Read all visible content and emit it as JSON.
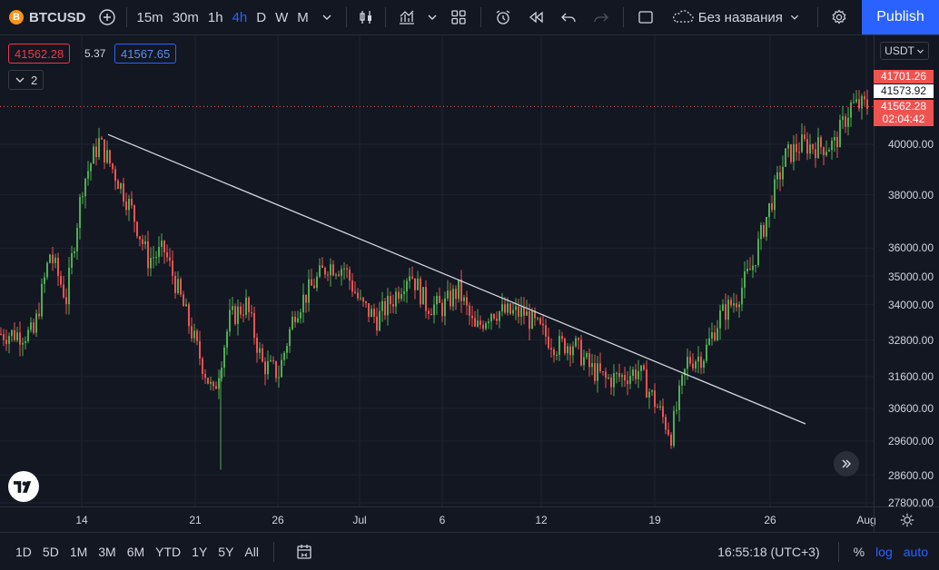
{
  "header": {
    "symbol": "BTCUSD",
    "symbol_icon": "B",
    "intervals": [
      "15m",
      "30m",
      "1h",
      "4h",
      "D",
      "W",
      "M"
    ],
    "active_interval": "4h",
    "layout_name": "Без названия",
    "publish_label": "Publish"
  },
  "quotes": {
    "bid": "41562.28",
    "spread": "5.37",
    "ask": "41567.65",
    "indicators_count": "2"
  },
  "currency": "USDT",
  "price_axis": {
    "labels": [
      "40000.00",
      "38000.00",
      "36000.00",
      "35000.00",
      "34000.00",
      "32800.00",
      "31600.00",
      "30600.00",
      "29600.00",
      "28600.00",
      "27800.00"
    ],
    "tag_high": "41701.26",
    "tag_crosshair": "41573.92",
    "tag_last": "41562.28",
    "tag_countdown": "02:04:42"
  },
  "time_axis": {
    "labels": [
      "14",
      "21",
      "26",
      "Jul",
      "6",
      "12",
      "19",
      "26",
      "Aug"
    ]
  },
  "bottom": {
    "ranges": [
      "1D",
      "5D",
      "1M",
      "3M",
      "6M",
      "YTD",
      "1Y",
      "5Y",
      "All"
    ],
    "clock": "16:55:18 (UTC+3)",
    "percent": "%",
    "log": "log",
    "auto": "auto"
  },
  "chart_data": {
    "type": "candlestick",
    "symbol": "BTCUSD",
    "interval": "4h",
    "anchors": [
      [
        "Jun 11",
        33000
      ],
      [
        "Jun 12",
        35800
      ],
      [
        "Jun 13",
        34200
      ],
      [
        "Jun 14",
        38400
      ],
      [
        "Jun 15",
        40100
      ],
      [
        "Jun 16",
        38800
      ],
      [
        "Jun 17",
        37400
      ],
      [
        "Jun 18",
        35600
      ],
      [
        "Jun 19",
        35900
      ],
      [
        "Jun 20",
        34200
      ],
      [
        "Jun 21",
        32500
      ],
      [
        "Jun 22",
        31000
      ],
      [
        "Jun 23",
        33500
      ],
      [
        "Jun 24",
        34000
      ],
      [
        "Jun 25",
        32000
      ],
      [
        "Jun 26",
        31700
      ],
      [
        "Jun 27",
        33800
      ],
      [
        "Jun 28",
        34600
      ],
      [
        "Jun 29",
        35400
      ],
      [
        "Jun 30",
        35300
      ],
      [
        "Jul 1",
        34000
      ],
      [
        "Jul 2",
        33500
      ],
      [
        "Jul 3",
        34200
      ],
      [
        "Jul 4",
        35200
      ],
      [
        "Jul 5",
        34000
      ],
      [
        "Jul 6",
        33900
      ],
      [
        "Jul 7",
        34500
      ],
      [
        "Jul 8",
        33100
      ],
      [
        "Jul 9",
        33800
      ],
      [
        "Jul 10",
        33700
      ],
      [
        "Jul 11",
        33700
      ],
      [
        "Jul 12",
        33100
      ],
      [
        "Jul 13",
        32600
      ],
      [
        "Jul 14",
        32700
      ],
      [
        "Jul 15",
        31900
      ],
      [
        "Jul 16",
        31500
      ],
      [
        "Jul 17",
        31600
      ],
      [
        "Jul 18",
        31800
      ],
      [
        "Jul 19",
        30800
      ],
      [
        "Jul 20",
        29800
      ],
      [
        "Jul 21",
        32100
      ],
      [
        "Jul 22",
        32300
      ],
      [
        "Jul 23",
        33600
      ],
      [
        "Jul 24",
        34200
      ],
      [
        "Jul 25",
        35400
      ],
      [
        "Jul 26",
        37500
      ],
      [
        "Jul 27",
        39500
      ],
      [
        "Jul 28",
        40000
      ],
      [
        "Jul 29",
        39900
      ],
      [
        "Jul 30",
        40000
      ],
      [
        "Jul 31",
        41600
      ]
    ],
    "trendline": {
      "from": [
        "Jun 15",
        40400
      ],
      "to": [
        "Jul 28",
        30300
      ]
    },
    "ylim": [
      27800,
      42000
    ],
    "up_color": "#26a69a",
    "bull_color": "#4caf50",
    "down_color": "#ef5350"
  }
}
